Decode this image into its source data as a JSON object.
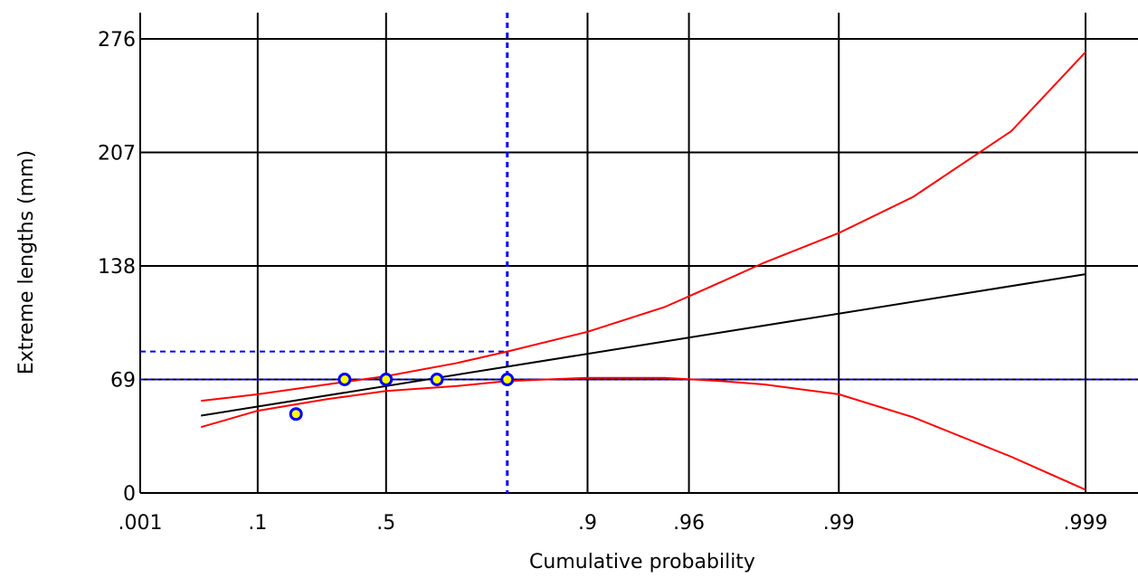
{
  "chart_data": {
    "type": "line",
    "title": "",
    "xlabel": "Cumulative probability",
    "ylabel": "Extreme lengths (mm)",
    "x_scale": "gumbel",
    "x_ticks": [
      ".001",
      ".1",
      ".5",
      ".9",
      ".96",
      ".99",
      ".999"
    ],
    "x_tick_values": [
      0.001,
      0.1,
      0.5,
      0.9,
      0.96,
      0.99,
      0.999
    ],
    "y_ticks": [
      "0",
      "69",
      "138",
      "207",
      "276"
    ],
    "y_tick_values": [
      0,
      69,
      138,
      207,
      276
    ],
    "ylim": [
      0,
      276
    ],
    "grid": true,
    "colors": {
      "grid": "#000000",
      "fit_line": "#000000",
      "confidence": "#ff0000",
      "reference": "#0000ff",
      "marker_fill": "#ffff00",
      "marker_edge": "#0000ff"
    },
    "series": [
      {
        "kind": "fit",
        "points": [
          [
            0.02,
            47
          ],
          [
            0.999,
            133
          ]
        ]
      },
      {
        "kind": "upper_bound",
        "points": [
          [
            0.02,
            56
          ],
          [
            0.1,
            60
          ],
          [
            0.3,
            66
          ],
          [
            0.5,
            71
          ],
          [
            0.7,
            79
          ],
          [
            0.8,
            86
          ],
          [
            0.9,
            98
          ],
          [
            0.95,
            113
          ],
          [
            0.97,
            128
          ],
          [
            0.98,
            140
          ],
          [
            0.99,
            158
          ],
          [
            0.995,
            180
          ],
          [
            0.998,
            220
          ],
          [
            0.999,
            268
          ]
        ]
      },
      {
        "kind": "lower_bound",
        "points": [
          [
            0.02,
            40
          ],
          [
            0.1,
            50
          ],
          [
            0.3,
            57
          ],
          [
            0.5,
            62
          ],
          [
            0.7,
            65
          ],
          [
            0.8,
            68
          ],
          [
            0.9,
            70
          ],
          [
            0.95,
            70
          ],
          [
            0.97,
            68
          ],
          [
            0.98,
            66
          ],
          [
            0.99,
            60
          ],
          [
            0.995,
            46
          ],
          [
            0.998,
            22
          ],
          [
            0.999,
            2
          ]
        ]
      }
    ],
    "observations": [
      [
        0.2,
        48
      ],
      [
        0.36,
        69
      ],
      [
        0.5,
        69
      ],
      [
        0.65,
        69
      ],
      [
        0.8,
        69
      ]
    ],
    "reference": {
      "x": 0.8,
      "y": 86,
      "y2": 69
    }
  }
}
